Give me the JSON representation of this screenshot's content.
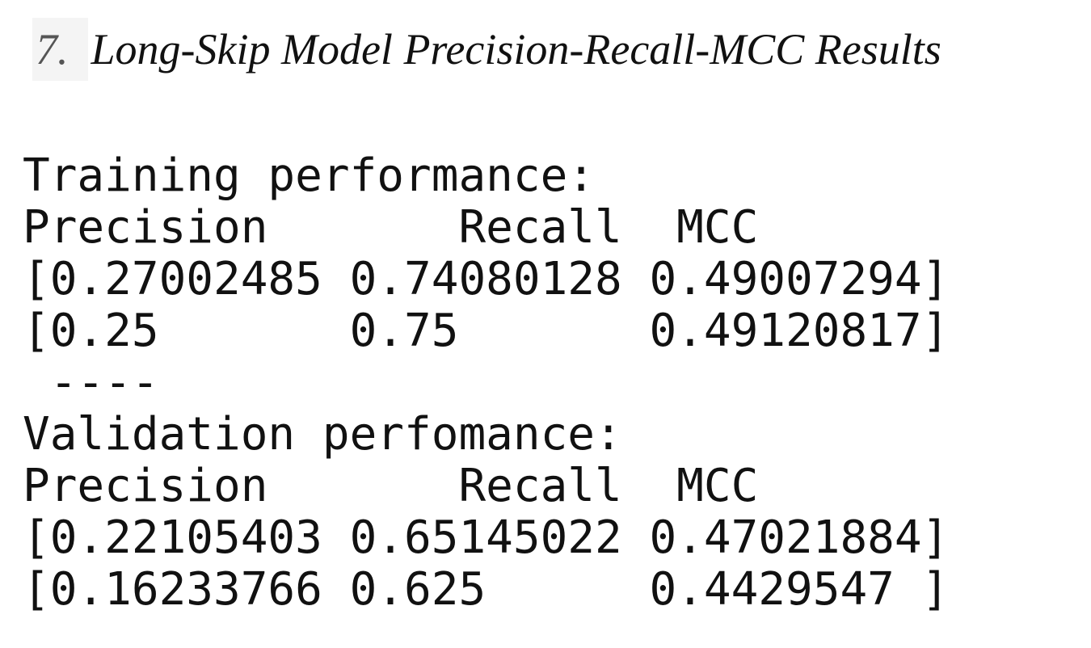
{
  "heading": {
    "number": "7.",
    "title": "Long-Skip Model Precision-Recall-MCC Results"
  },
  "output": {
    "lines": [
      "Training performance:",
      "Precision       Recall  MCC",
      "[0.27002485 0.74080128 0.49007294]",
      "[0.25       0.75       0.49120817]",
      " ----",
      "Validation perfomance:",
      "Precision       Recall  MCC",
      "[0.22105403 0.65145022 0.47021884]",
      "[0.16233766 0.625      0.4429547 ]"
    ]
  }
}
